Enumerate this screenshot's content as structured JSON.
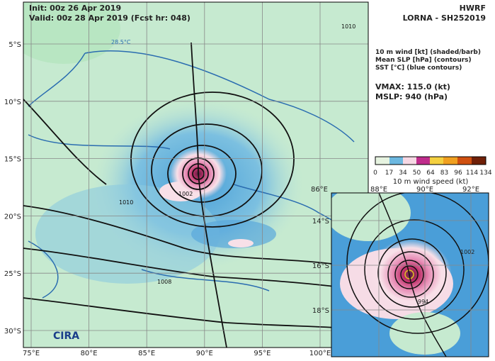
{
  "header": {
    "init": "Init:  00z 26 Apr 2019",
    "valid": "Valid: 00z 28 Apr 2019 (Fcst hr: 048)",
    "model": "HWRF",
    "storm": "LORNA - SH252019"
  },
  "legend": {
    "lines": [
      "10 m wind [kt] (shaded/barb)",
      "Mean SLP [hPa] (contours)",
      "SST [°C] (blue contours)"
    ],
    "vmax": "VMAX: 115.0 (kt)",
    "mslp": "MSLP:  940 (hPa)"
  },
  "colorbar": {
    "ticks": [
      0,
      17,
      34,
      50,
      64,
      83,
      96,
      114,
      134
    ],
    "label": "10 m wind speed (kt)"
  },
  "main_map": {
    "lat_labels": [
      "5°S",
      "10°S",
      "15°S",
      "20°S",
      "25°S",
      "30°S"
    ],
    "lon_labels": [
      "75°E",
      "80°E",
      "85°E",
      "90°E",
      "95°E",
      "100°E"
    ],
    "contour_labels": [
      "28.5°C",
      "1010",
      "1002",
      "1008",
      "1010"
    ]
  },
  "inset_map": {
    "lon_labels": [
      "88°E",
      "90°E",
      "92°E"
    ],
    "edge_lon_label": "86°E",
    "lat_labels": [
      "14°S",
      "16°S",
      "18°S"
    ],
    "contour_labels": [
      "1002",
      "994"
    ]
  },
  "logo": "CIRA"
}
